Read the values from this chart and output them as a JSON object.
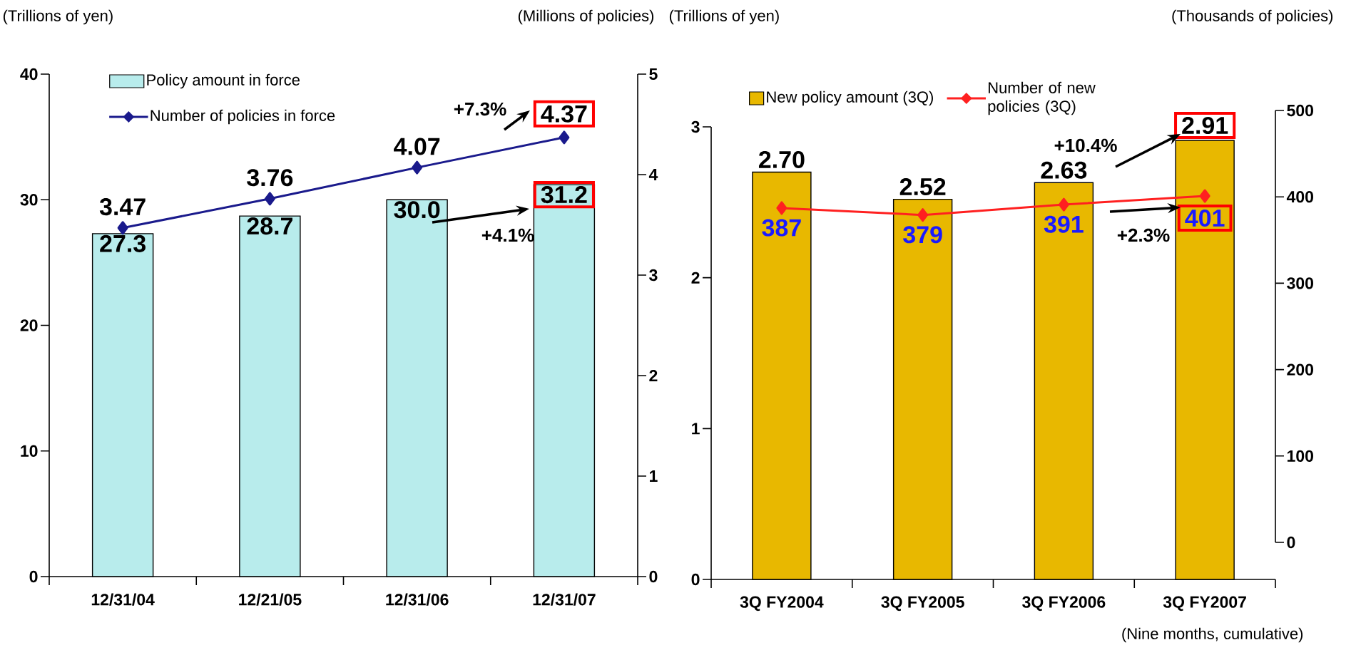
{
  "chart_data": [
    {
      "type": "bar",
      "ylabel": "(Trillions of yen)",
      "y2label": "(Millions of policies)",
      "categories": [
        "12/31/04",
        "12/21/05",
        "12/31/06",
        "12/31/07"
      ],
      "series": [
        {
          "name": "Policy amount in force",
          "color": "#b8ecec",
          "values": [
            27.3,
            28.7,
            30.0,
            31.2
          ],
          "value_labels": [
            "27.3",
            "28.7",
            "30.0",
            "31.2"
          ]
        },
        {
          "name": "Number of policies in force",
          "type": "line",
          "axis": "y2",
          "color": "#1a1a8c",
          "values": [
            3.47,
            3.76,
            4.07,
            4.37
          ],
          "value_labels": [
            "3.47",
            "3.76",
            "4.07",
            "4.37"
          ]
        }
      ],
      "ylim": [
        0,
        40
      ],
      "yticks": [
        0,
        10,
        20,
        30,
        40
      ],
      "y2lim": [
        0,
        5
      ],
      "y2ticks": [
        0,
        1,
        2,
        3,
        4,
        5
      ],
      "marker": "diamond",
      "legend": "top left",
      "annotations": [
        "+7.3%",
        "+4.1%"
      ]
    },
    {
      "type": "bar",
      "ylabel": "(Trillions of yen)",
      "y2label": "(Thousands of policies)",
      "categories": [
        "3Q FY2004",
        "3Q FY2005",
        "3Q FY2006",
        "3Q FY2007"
      ],
      "series": [
        {
          "name": "New policy amount (3Q)",
          "color": "#e8b800",
          "values": [
            2.7,
            2.52,
            2.63,
            2.91
          ],
          "value_labels": [
            "2.70",
            "2.52",
            "2.63",
            "2.91"
          ]
        },
        {
          "name": "Number of new policies (3Q)",
          "type": "line",
          "axis": "y2",
          "color": "#ff2020",
          "values": [
            387,
            379,
            391,
            401
          ],
          "value_labels": [
            "387",
            "379",
            "391",
            "401"
          ]
        }
      ],
      "ylim": [
        0,
        3
      ],
      "yticks": [
        0,
        1,
        2,
        3
      ],
      "y2lim": [
        0,
        500
      ],
      "y2ticks": [
        0,
        100,
        200,
        300,
        400,
        500
      ],
      "marker": "diamond",
      "legend": "top",
      "annotations": [
        "+10.4%",
        "+2.3%",
        "(Nine months, cumulative)"
      ]
    }
  ]
}
